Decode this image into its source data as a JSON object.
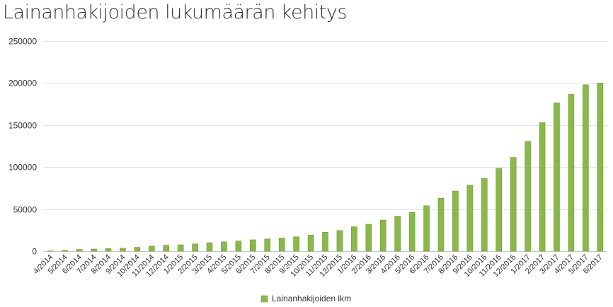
{
  "chart_data": {
    "type": "bar",
    "title": "Lainanhakijoiden lukumäärän kehitys",
    "xlabel": "",
    "ylabel": "",
    "ylim": [
      0,
      250000
    ],
    "yticks": [
      0,
      50000,
      100000,
      150000,
      200000,
      250000
    ],
    "grid": true,
    "legend_position": "bottom-center",
    "color": "#8ab84b",
    "categories": [
      "4/2014",
      "5/2014",
      "6/2014",
      "7/2014",
      "8/2014",
      "9/2014",
      "10/2014",
      "11/2014",
      "12/2014",
      "1/2015",
      "2/2015",
      "3/2015",
      "4/2015",
      "5/2015",
      "6/2015",
      "7/2015",
      "8/2015",
      "9/2015",
      "10/2015",
      "11/2015",
      "12/2015",
      "1/2016",
      "2/2016",
      "3/2016",
      "4/2016",
      "5/2016",
      "6/2016",
      "7/2016",
      "8/2016",
      "9/2016",
      "10/2016",
      "11/2016",
      "12/2016",
      "1/2017",
      "2/2017",
      "3/2017",
      "4/2017",
      "5/2017",
      "6/2017"
    ],
    "series": [
      {
        "name": "Lainanhakijoiden lkm",
        "values": [
          300,
          1000,
          2000,
          2500,
          3000,
          3500,
          4500,
          6000,
          7000,
          7500,
          8500,
          10000,
          11000,
          12000,
          13500,
          14500,
          15500,
          17000,
          19000,
          22500,
          24500,
          29000,
          32000,
          37000,
          41500,
          46000,
          54000,
          63000,
          71500,
          78500,
          86500,
          98500,
          111500,
          130500,
          153000,
          176500,
          186500,
          198000,
          200000
        ]
      }
    ]
  }
}
